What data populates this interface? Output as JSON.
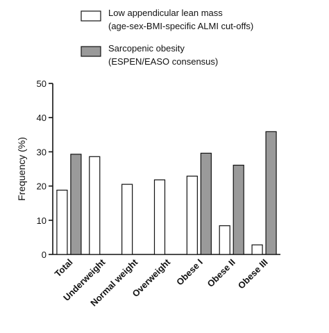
{
  "chart_data": {
    "type": "bar",
    "title": "",
    "xlabel": "",
    "ylabel": "Frequency (%)",
    "ylim": [
      0,
      50
    ],
    "yticks": [
      0,
      10,
      20,
      30,
      40,
      50
    ],
    "grid": false,
    "legend_position": "top",
    "categories": [
      "Total",
      "Underweight",
      "Normal weight",
      "Overweight",
      "Obese I",
      "Obese II",
      "Obese III"
    ],
    "series": [
      {
        "name": "Low appendicular lean mass (age-sex-BMI-specific ALMI cut-offs)",
        "legend_lines": [
          "Low appendicular lean mass",
          "(age-sex-BMI-specific ALMI cut-offs)"
        ],
        "color": "#ffffff",
        "values": [
          18.8,
          28.6,
          20.5,
          21.8,
          22.9,
          8.4,
          2.8
        ]
      },
      {
        "name": "Sarcopenic obesity (ESPEN/EASO consensus)",
        "legend_lines": [
          "Sarcopenic obesity",
          "(ESPEN/EASO consensus)"
        ],
        "color": "#9a9a9a",
        "values": [
          29.3,
          null,
          null,
          null,
          29.6,
          26.1,
          35.9
        ]
      }
    ]
  }
}
